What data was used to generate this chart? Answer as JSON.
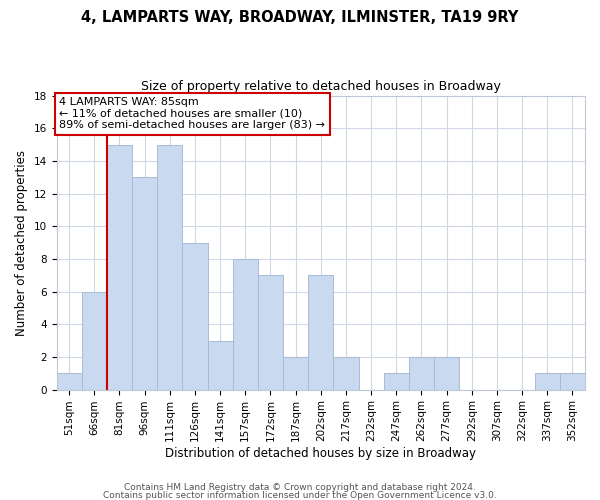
{
  "title": "4, LAMPARTS WAY, BROADWAY, ILMINSTER, TA19 9RY",
  "subtitle": "Size of property relative to detached houses in Broadway",
  "xlabel": "Distribution of detached houses by size in Broadway",
  "ylabel": "Number of detached properties",
  "bar_color": "#c8d9f0",
  "bar_edge_color": "#a8bcd8",
  "marker_line_color": "#cc0000",
  "annotation_box_edge": "#cc0000",
  "tick_labels": [
    "51sqm",
    "66sqm",
    "81sqm",
    "96sqm",
    "111sqm",
    "126sqm",
    "141sqm",
    "157sqm",
    "172sqm",
    "187sqm",
    "202sqm",
    "217sqm",
    "232sqm",
    "247sqm",
    "262sqm",
    "277sqm",
    "292sqm",
    "307sqm",
    "322sqm",
    "337sqm",
    "352sqm"
  ],
  "bar_heights": [
    1,
    6,
    15,
    13,
    15,
    9,
    3,
    8,
    7,
    2,
    7,
    2,
    0,
    1,
    2,
    2,
    0,
    0,
    0,
    1,
    1
  ],
  "marker_bar_index": 2,
  "ylim": [
    0,
    18
  ],
  "yticks": [
    0,
    2,
    4,
    6,
    8,
    10,
    12,
    14,
    16,
    18
  ],
  "annotation_line1": "4 LAMPARTS WAY: 85sqm",
  "annotation_line2": "← 11% of detached houses are smaller (10)",
  "annotation_line3": "89% of semi-detached houses are larger (83) →",
  "footer_line1": "Contains HM Land Registry data © Crown copyright and database right 2024.",
  "footer_line2": "Contains public sector information licensed under the Open Government Licence v3.0.",
  "background_color": "#ffffff",
  "grid_color": "#d0d8e8",
  "title_fontsize": 10.5,
  "subtitle_fontsize": 9,
  "axis_label_fontsize": 8.5,
  "tick_fontsize": 7.5,
  "annotation_fontsize": 8,
  "footer_fontsize": 6.5
}
